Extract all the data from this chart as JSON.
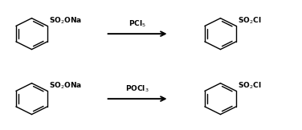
{
  "background_color": "#ffffff",
  "figsize": [
    3.76,
    1.62
  ],
  "dpi": 100,
  "reaction1": {
    "reagent": "PCl$_5$",
    "reactant_label": "SO$_2$ONa",
    "product_label": "SO$_2$Cl"
  },
  "reaction2": {
    "reagent": "POCl$_3$",
    "reactant_label": "SO$_2$ONa",
    "product_label": "SO$_2$Cl"
  },
  "ring_color": "#000000",
  "text_color": "#000000",
  "label_fontsize": 6.5,
  "reagent_fontsize": 6.5,
  "label_fontweight": "bold",
  "reagent_fontweight": "bold"
}
